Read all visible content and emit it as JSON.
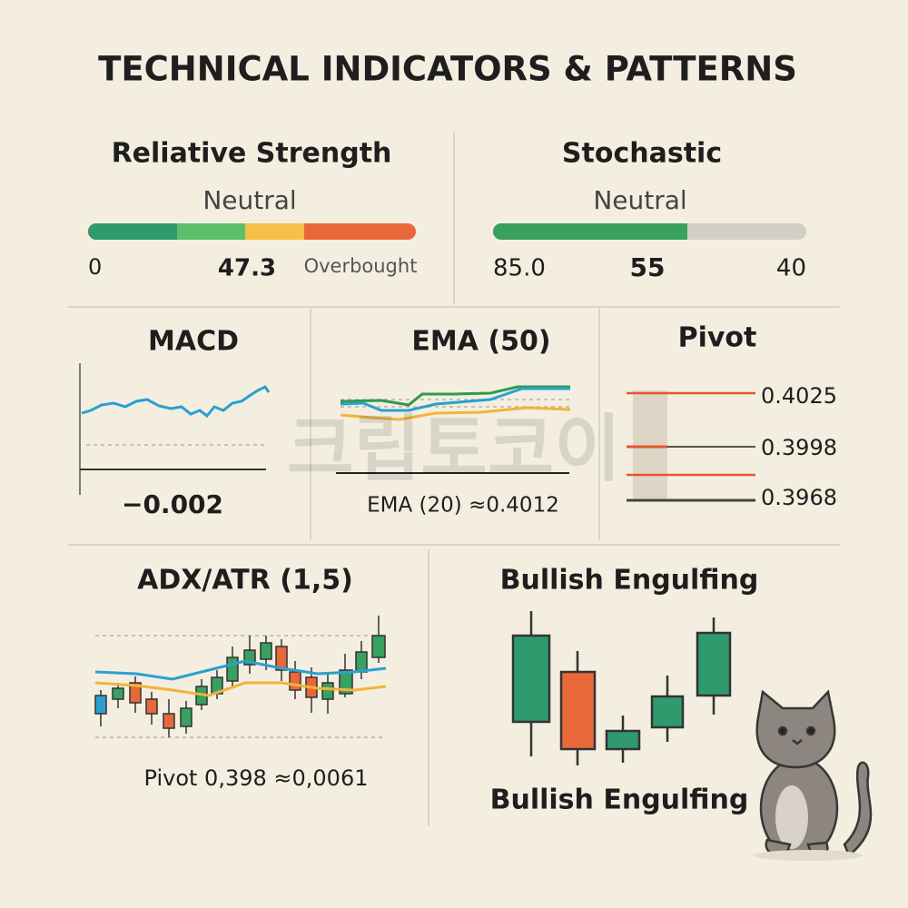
{
  "header": {
    "title": "TECHNICAL INDICATORS & PATTERNS"
  },
  "panels": {
    "rsi": {
      "title": "Reliative Strength",
      "status": "Neutral",
      "labels": [
        "0",
        "47.3",
        "Overbought"
      ]
    },
    "stochastic": {
      "title": "Stochastic",
      "status": "Neutral",
      "labels": [
        "85.0",
        "55",
        "40"
      ]
    },
    "macd": {
      "title": "MACD",
      "value": "−0.002"
    },
    "ema": {
      "title": "EMA (50)",
      "note": "EMA (20) ≈0.4012"
    },
    "pivot": {
      "title": "Pivot",
      "levels": [
        "0.4025",
        "0.3998",
        "0.3968"
      ]
    },
    "adx": {
      "title": "ADX/ATR (1,5)",
      "note": "Pivot 0,398 ≈0,0061"
    },
    "pattern": {
      "title": "Bullish Engulfing",
      "caption": "Bullish Engulfing"
    }
  },
  "watermark": "크립토코이"
}
